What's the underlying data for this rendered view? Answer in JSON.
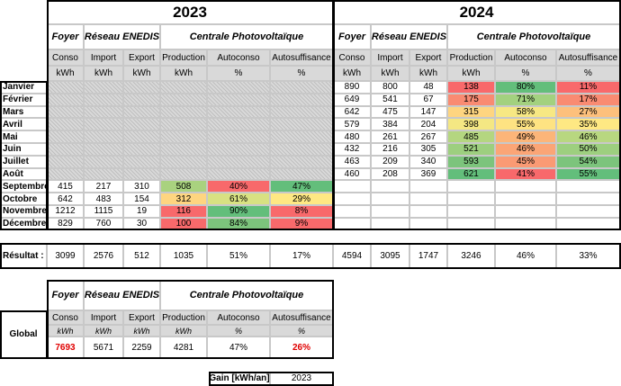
{
  "table": {
    "years": [
      "2023",
      "2024"
    ],
    "groups": [
      "Foyer",
      "Réseau ENEDIS",
      "Centrale Photovoltaïque"
    ],
    "columns": [
      "Conso",
      "Import",
      "Export",
      "Production",
      "Autoconso",
      "Autosuffisance"
    ],
    "units": [
      "kWh",
      "kWh",
      "kWh",
      "kWh",
      "%",
      "%"
    ],
    "rows": [
      {
        "label": "Janvier",
        "values": [
          null,
          [
            "890",
            "800",
            "48",
            "138",
            "80%",
            "11%"
          ]
        ]
      },
      {
        "label": "Février",
        "values": [
          null,
          [
            "649",
            "541",
            "67",
            "175",
            "71%",
            "17%"
          ]
        ]
      },
      {
        "label": "Mars",
        "values": [
          null,
          [
            "642",
            "475",
            "147",
            "315",
            "58%",
            "27%"
          ]
        ]
      },
      {
        "label": "Avril",
        "values": [
          null,
          [
            "579",
            "384",
            "204",
            "398",
            "55%",
            "35%"
          ]
        ]
      },
      {
        "label": "Mai",
        "values": [
          null,
          [
            "480",
            "261",
            "267",
            "485",
            "49%",
            "46%"
          ]
        ]
      },
      {
        "label": "Juin",
        "values": [
          null,
          [
            "432",
            "216",
            "305",
            "521",
            "46%",
            "50%"
          ]
        ]
      },
      {
        "label": "Juillet",
        "values": [
          null,
          [
            "463",
            "209",
            "340",
            "593",
            "45%",
            "54%"
          ]
        ]
      },
      {
        "label": "Août",
        "values": [
          null,
          [
            "460",
            "208",
            "369",
            "621",
            "41%",
            "55%"
          ]
        ]
      },
      {
        "label": "Septembre",
        "values": [
          [
            "415",
            "217",
            "310",
            "508",
            "40%",
            "47%"
          ],
          null
        ]
      },
      {
        "label": "Octobre",
        "values": [
          [
            "642",
            "483",
            "154",
            "312",
            "61%",
            "29%"
          ],
          null
        ]
      },
      {
        "label": "Novembre",
        "values": [
          [
            "1212",
            "1115",
            "19",
            "116",
            "90%",
            "8%"
          ],
          null
        ]
      },
      {
        "label": "Décembre",
        "values": [
          [
            "829",
            "760",
            "30",
            "100",
            "84%",
            "9%"
          ],
          null
        ]
      }
    ],
    "result": {
      "label": "Résultat :",
      "values": [
        [
          "3099",
          "2576",
          "512",
          "1035",
          "51%",
          "17%"
        ],
        [
          "4594",
          "3095",
          "1747",
          "3246",
          "46%",
          "33%"
        ]
      ]
    }
  },
  "global": {
    "label": "Global",
    "groups": [
      "Foyer",
      "Réseau ENEDIS",
      "Centrale Photovoltaïque"
    ],
    "columns": [
      "Conso",
      "Import",
      "Export",
      "Production",
      "Autoconso",
      "Autosuffisance"
    ],
    "units": [
      "kWh",
      "kWh",
      "kWh",
      "kWh",
      "%",
      "%"
    ],
    "values": [
      "7693",
      "5671",
      "2259",
      "4281",
      "47%",
      "26%"
    ]
  },
  "gain": {
    "label": "Gain [kWh/an]",
    "value": "2023"
  }
}
